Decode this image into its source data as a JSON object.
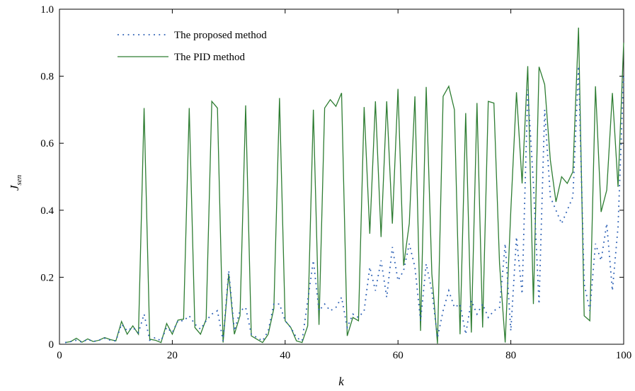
{
  "chart_data": {
    "type": "line",
    "xlabel": "k",
    "ylabel": "J",
    "ylabel_sub": "sen",
    "xlim": [
      0,
      100
    ],
    "ylim": [
      0,
      1.0
    ],
    "xticks": [
      0,
      20,
      40,
      60,
      80,
      100
    ],
    "yticks": [
      0,
      0.2,
      0.4,
      0.6,
      0.8,
      1.0
    ],
    "xtick_labels": [
      "0",
      "20",
      "40",
      "60",
      "80",
      "100"
    ],
    "ytick_labels": [
      "0",
      "0.2",
      "0.4",
      "0.6",
      "0.8",
      "1.0"
    ],
    "grid": false,
    "legend_position": "top-left",
    "series": [
      {
        "name": "The proposed method",
        "style": "dotted",
        "color": "#2b5fb4",
        "x": [
          1,
          2,
          3,
          4,
          5,
          6,
          7,
          8,
          9,
          10,
          11,
          12,
          13,
          14,
          15,
          16,
          17,
          18,
          19,
          20,
          21,
          22,
          23,
          24,
          25,
          26,
          27,
          28,
          29,
          30,
          31,
          32,
          33,
          34,
          35,
          36,
          37,
          38,
          39,
          40,
          41,
          42,
          43,
          44,
          45,
          46,
          47,
          48,
          49,
          50,
          51,
          52,
          53,
          54,
          55,
          56,
          57,
          58,
          59,
          60,
          61,
          62,
          63,
          64,
          65,
          66,
          67,
          68,
          69,
          70,
          71,
          72,
          73,
          74,
          75,
          76,
          77,
          78,
          79,
          80,
          81,
          82,
          83,
          84,
          85,
          86,
          87,
          88,
          89,
          90,
          91,
          92,
          93,
          94,
          95,
          96,
          97,
          98,
          99,
          100
        ],
        "y": [
          0.005,
          0.008,
          0.012,
          0.006,
          0.015,
          0.008,
          0.012,
          0.018,
          0.012,
          0.01,
          0.06,
          0.04,
          0.05,
          0.035,
          0.09,
          0.012,
          0.02,
          0.01,
          0.05,
          0.035,
          0.07,
          0.07,
          0.085,
          0.06,
          0.045,
          0.07,
          0.09,
          0.1,
          0.01,
          0.22,
          0.04,
          0.1,
          0.11,
          0.03,
          0.02,
          0.01,
          0.04,
          0.12,
          0.12,
          0.07,
          0.05,
          0.02,
          0.01,
          0.13,
          0.25,
          0.1,
          0.12,
          0.1,
          0.11,
          0.14,
          0.05,
          0.09,
          0.08,
          0.1,
          0.23,
          0.16,
          0.25,
          0.14,
          0.29,
          0.19,
          0.22,
          0.3,
          0.23,
          0.07,
          0.24,
          0.16,
          0.02,
          0.1,
          0.16,
          0.11,
          0.12,
          0.03,
          0.13,
          0.09,
          0.12,
          0.08,
          0.1,
          0.11,
          0.3,
          0.04,
          0.32,
          0.15,
          0.76,
          0.48,
          0.12,
          0.7,
          0.44,
          0.4,
          0.36,
          0.4,
          0.44,
          0.83,
          0.18,
          0.1,
          0.3,
          0.25,
          0.36,
          0.16,
          0.35,
          0.81
        ]
      },
      {
        "name": "The PID method",
        "style": "solid",
        "color": "#2e7d32",
        "x": [
          1,
          2,
          3,
          4,
          5,
          6,
          7,
          8,
          9,
          10,
          11,
          12,
          13,
          14,
          15,
          16,
          17,
          18,
          19,
          20,
          21,
          22,
          23,
          24,
          25,
          26,
          27,
          28,
          29,
          30,
          31,
          32,
          33,
          34,
          35,
          36,
          37,
          38,
          39,
          40,
          41,
          42,
          43,
          44,
          45,
          46,
          47,
          48,
          49,
          50,
          51,
          52,
          53,
          54,
          55,
          56,
          57,
          58,
          59,
          60,
          61,
          62,
          63,
          64,
          65,
          66,
          67,
          68,
          69,
          70,
          71,
          72,
          73,
          74,
          75,
          76,
          77,
          78,
          79,
          80,
          81,
          82,
          83,
          84,
          85,
          86,
          87,
          88,
          89,
          90,
          91,
          92,
          93,
          94,
          95,
          96,
          97,
          98,
          99,
          100
        ],
        "y": [
          0.005,
          0.008,
          0.018,
          0.006,
          0.016,
          0.008,
          0.012,
          0.02,
          0.014,
          0.01,
          0.068,
          0.03,
          0.055,
          0.03,
          0.705,
          0.015,
          0.012,
          0.005,
          0.062,
          0.03,
          0.072,
          0.075,
          0.705,
          0.05,
          0.03,
          0.075,
          0.725,
          0.705,
          0.005,
          0.21,
          0.03,
          0.085,
          0.713,
          0.025,
          0.015,
          0.005,
          0.03,
          0.107,
          0.735,
          0.07,
          0.05,
          0.01,
          0.005,
          0.055,
          0.7,
          0.058,
          0.705,
          0.73,
          0.71,
          0.75,
          0.025,
          0.08,
          0.07,
          0.708,
          0.33,
          0.725,
          0.32,
          0.725,
          0.36,
          0.762,
          0.235,
          0.36,
          0.74,
          0.04,
          0.768,
          0.21,
          0.002,
          0.74,
          0.77,
          0.7,
          0.03,
          0.69,
          0.035,
          0.72,
          0.05,
          0.725,
          0.72,
          0.24,
          0.005,
          0.4,
          0.752,
          0.48,
          0.83,
          0.12,
          0.828,
          0.775,
          0.55,
          0.425,
          0.5,
          0.48,
          0.515,
          0.945,
          0.085,
          0.07,
          0.77,
          0.395,
          0.46,
          0.75,
          0.47,
          0.9
        ]
      }
    ]
  }
}
